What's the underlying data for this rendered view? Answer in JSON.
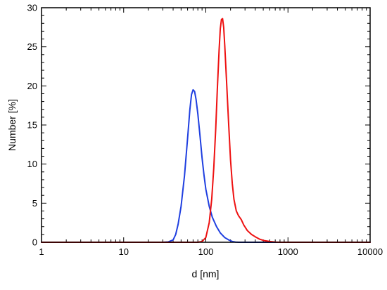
{
  "chart_data": {
    "type": "line",
    "title": "",
    "xlabel": "d [nm]",
    "ylabel": "Number [%]",
    "xscale": "log",
    "xlim": [
      1,
      10000
    ],
    "ylim": [
      0,
      30
    ],
    "grid": false,
    "x_ticks": [
      {
        "value": 1,
        "label": "1"
      },
      {
        "value": 10,
        "label": "10"
      },
      {
        "value": 100,
        "label": "100"
      },
      {
        "value": 1000,
        "label": "1000"
      },
      {
        "value": 10000,
        "label": "10000"
      }
    ],
    "y_ticks": [
      {
        "value": 0,
        "label": "0"
      },
      {
        "value": 5,
        "label": "5"
      },
      {
        "value": 10,
        "label": "10"
      },
      {
        "value": 15,
        "label": "15"
      },
      {
        "value": 20,
        "label": "20"
      },
      {
        "value": 25,
        "label": "25"
      },
      {
        "value": 30,
        "label": "30"
      }
    ],
    "series": [
      {
        "color": "#1f3fe0",
        "points": [
          [
            1,
            0
          ],
          [
            10,
            0
          ],
          [
            30,
            0
          ],
          [
            35,
            0.05
          ],
          [
            40,
            0.3
          ],
          [
            43,
            1.0
          ],
          [
            46,
            2.3
          ],
          [
            50,
            4.6
          ],
          [
            55,
            8.5
          ],
          [
            60,
            13.3
          ],
          [
            64,
            17.0
          ],
          [
            67,
            18.9
          ],
          [
            70,
            19.5
          ],
          [
            73,
            19.3
          ],
          [
            76,
            18.3
          ],
          [
            80,
            16.4
          ],
          [
            85,
            13.6
          ],
          [
            90,
            10.8
          ],
          [
            95,
            8.6
          ],
          [
            100,
            6.8
          ],
          [
            110,
            4.6
          ],
          [
            120,
            3.2
          ],
          [
            135,
            2.0
          ],
          [
            150,
            1.2
          ],
          [
            170,
            0.6
          ],
          [
            190,
            0.3
          ],
          [
            210,
            0.1
          ],
          [
            230,
            0.02
          ],
          [
            250,
            0
          ],
          [
            1000,
            0
          ],
          [
            10000,
            0
          ]
        ]
      },
      {
        "color": "#ee1111",
        "points": [
          [
            1,
            0
          ],
          [
            10,
            0
          ],
          [
            80,
            0
          ],
          [
            90,
            0.1
          ],
          [
            100,
            0.6
          ],
          [
            110,
            2.5
          ],
          [
            118,
            5.5
          ],
          [
            125,
            9.5
          ],
          [
            132,
            14.5
          ],
          [
            138,
            19.5
          ],
          [
            145,
            24.5
          ],
          [
            150,
            27.3
          ],
          [
            155,
            28.5
          ],
          [
            160,
            28.6
          ],
          [
            165,
            27.5
          ],
          [
            170,
            25.2
          ],
          [
            180,
            20.0
          ],
          [
            190,
            15.0
          ],
          [
            200,
            10.5
          ],
          [
            210,
            7.5
          ],
          [
            220,
            5.5
          ],
          [
            235,
            4.0
          ],
          [
            250,
            3.4
          ],
          [
            270,
            2.9
          ],
          [
            290,
            2.2
          ],
          [
            320,
            1.5
          ],
          [
            360,
            1.0
          ],
          [
            400,
            0.7
          ],
          [
            450,
            0.4
          ],
          [
            520,
            0.2
          ],
          [
            600,
            0.1
          ],
          [
            700,
            0.02
          ],
          [
            800,
            0
          ],
          [
            10000,
            0
          ]
        ]
      }
    ]
  }
}
